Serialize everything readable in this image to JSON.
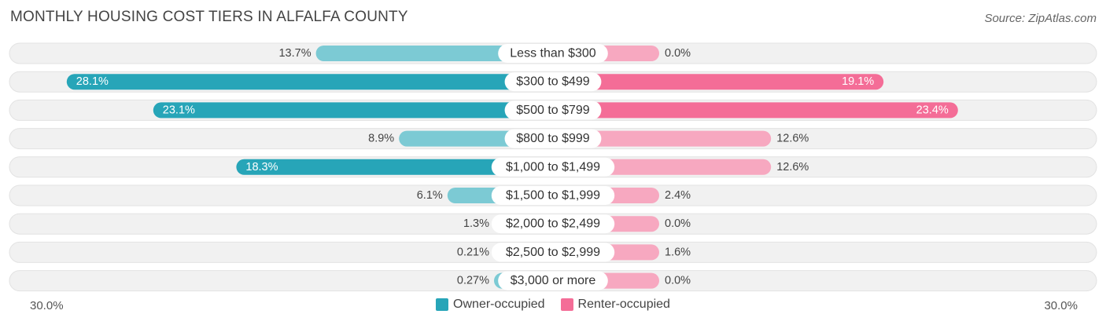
{
  "title": "MONTHLY HOUSING COST TIERS IN ALFALFA COUNTY",
  "source": "Source: ZipAtlas.com",
  "colors": {
    "owner": "#27a5b8",
    "owner_light": "#7ccad4",
    "renter": "#f46d97",
    "renter_light": "#f7a8c0",
    "row_bg": "#f0f0f0"
  },
  "chart_data": {
    "type": "bar",
    "orientation": "horizontal-diverging",
    "title": "MONTHLY HOUSING COST TIERS IN ALFALFA COUNTY",
    "categories": [
      "Less than $300",
      "$300 to $499",
      "$500 to $799",
      "$800 to $999",
      "$1,000 to $1,499",
      "$1,500 to $1,999",
      "$2,000 to $2,499",
      "$2,500 to $2,999",
      "$3,000 or more"
    ],
    "series": [
      {
        "name": "Owner-occupied",
        "values": [
          13.7,
          28.1,
          23.1,
          8.9,
          18.3,
          6.1,
          1.3,
          0.21,
          0.27
        ],
        "labels": [
          "13.7%",
          "28.1%",
          "23.1%",
          "8.9%",
          "18.3%",
          "6.1%",
          "1.3%",
          "0.21%",
          "0.27%"
        ]
      },
      {
        "name": "Renter-occupied",
        "values": [
          0.0,
          19.1,
          23.4,
          12.6,
          12.6,
          2.4,
          0.0,
          1.6,
          0.0
        ],
        "labels": [
          "0.0%",
          "19.1%",
          "23.4%",
          "12.6%",
          "12.6%",
          "2.4%",
          "0.0%",
          "1.6%",
          "0.0%"
        ]
      }
    ],
    "xlim": [
      -30,
      30
    ],
    "axis_left_label": "30.0%",
    "axis_right_label": "30.0%",
    "legend_position": "bottom-center"
  }
}
